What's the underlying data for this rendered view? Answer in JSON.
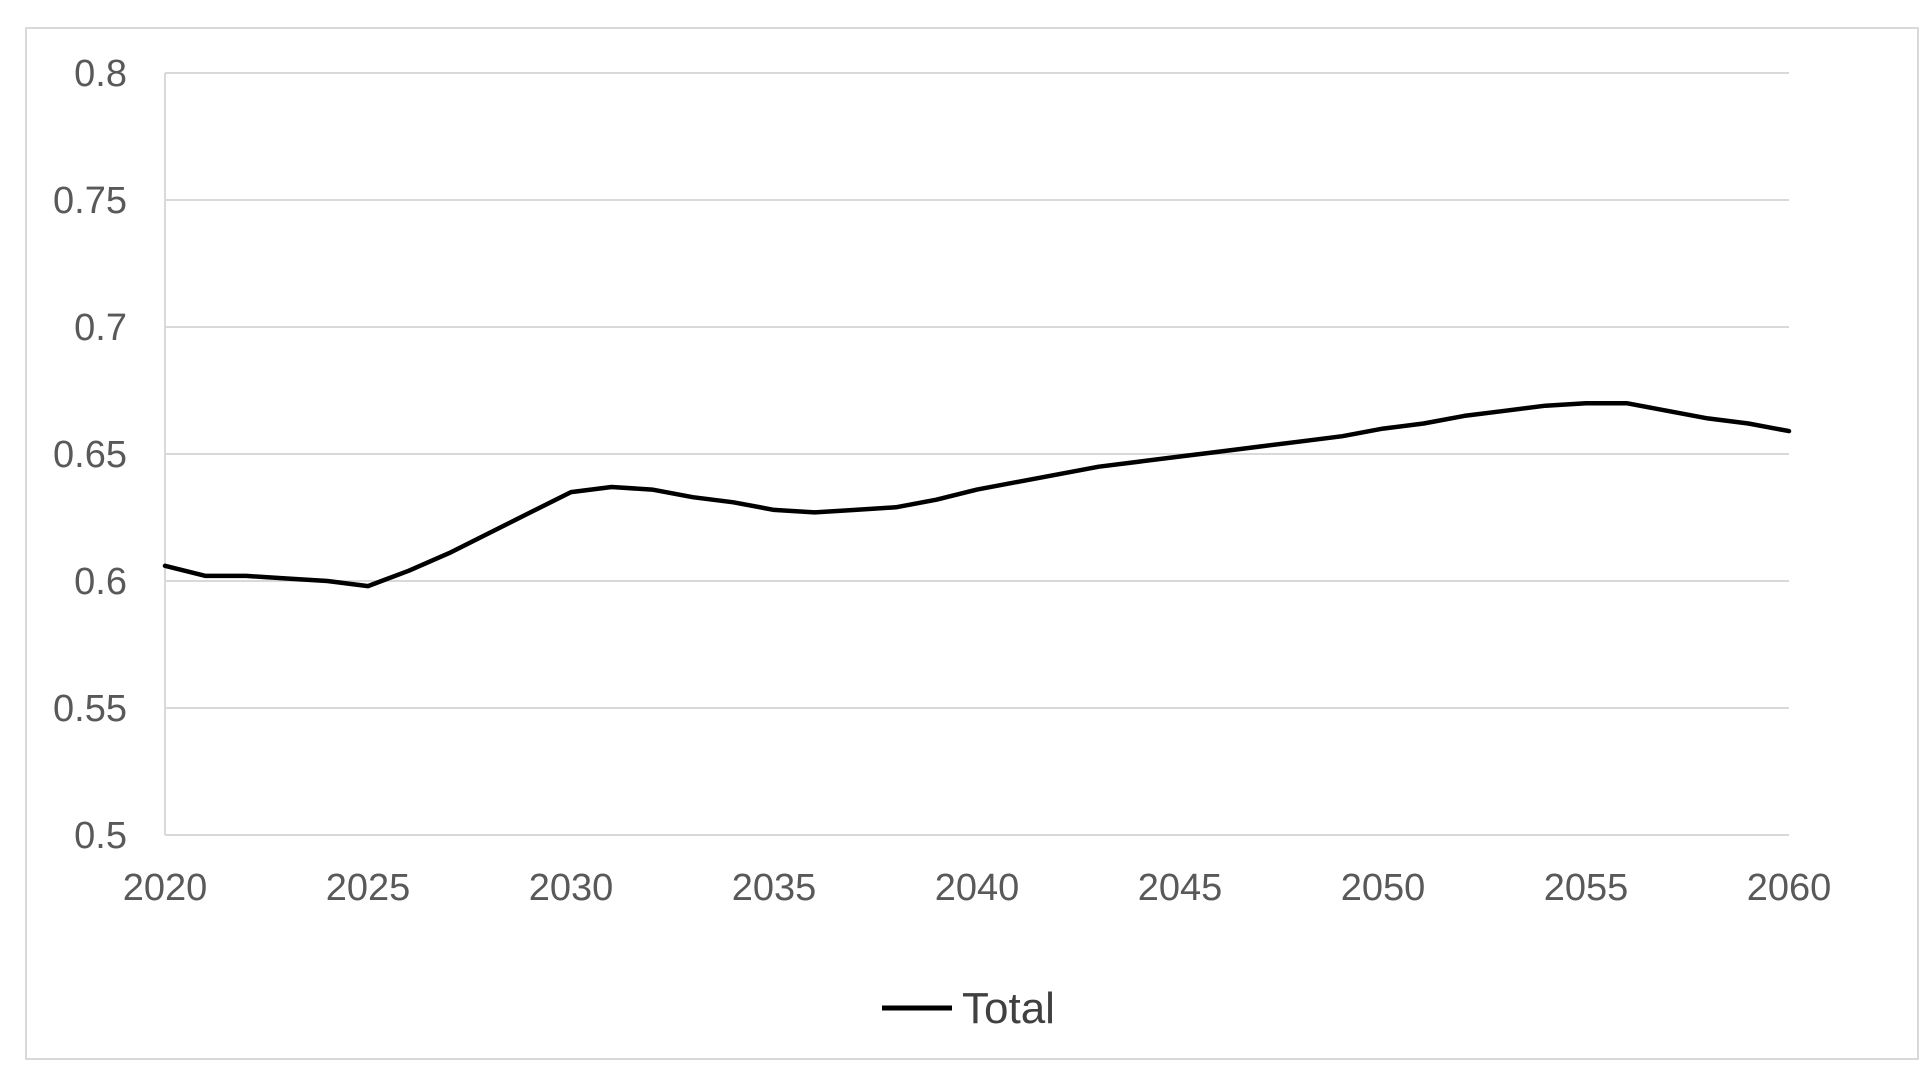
{
  "chart_data": {
    "type": "line",
    "title": "",
    "xlabel": "",
    "ylabel": "",
    "xlim": [
      2020,
      2060
    ],
    "ylim": [
      0.5,
      0.8
    ],
    "x_ticks": [
      "2020",
      "2025",
      "2030",
      "2035",
      "2040",
      "2045",
      "2050",
      "2055",
      "2060"
    ],
    "y_ticks": [
      "0.8",
      "0.75",
      "0.7",
      "0.65",
      "0.6",
      "0.55",
      "0.5"
    ],
    "grid": true,
    "legend": {
      "position": "bottom",
      "entries": [
        "Total"
      ]
    },
    "series": [
      {
        "name": "Total",
        "color": "#000000",
        "x": [
          2020,
          2021,
          2022,
          2023,
          2024,
          2025,
          2026,
          2027,
          2028,
          2029,
          2030,
          2031,
          2032,
          2033,
          2034,
          2035,
          2036,
          2037,
          2038,
          2039,
          2040,
          2041,
          2042,
          2043,
          2044,
          2045,
          2046,
          2047,
          2048,
          2049,
          2050,
          2051,
          2052,
          2053,
          2054,
          2055,
          2056,
          2057,
          2058,
          2059,
          2060
        ],
        "values": [
          0.606,
          0.602,
          0.602,
          0.601,
          0.6,
          0.598,
          0.604,
          0.611,
          0.619,
          0.627,
          0.635,
          0.637,
          0.636,
          0.633,
          0.631,
          0.628,
          0.627,
          0.628,
          0.629,
          0.632,
          0.636,
          0.639,
          0.642,
          0.645,
          0.647,
          0.649,
          0.651,
          0.653,
          0.655,
          0.657,
          0.66,
          0.662,
          0.665,
          0.667,
          0.669,
          0.67,
          0.67,
          0.667,
          0.664,
          0.662,
          0.659
        ]
      }
    ]
  }
}
